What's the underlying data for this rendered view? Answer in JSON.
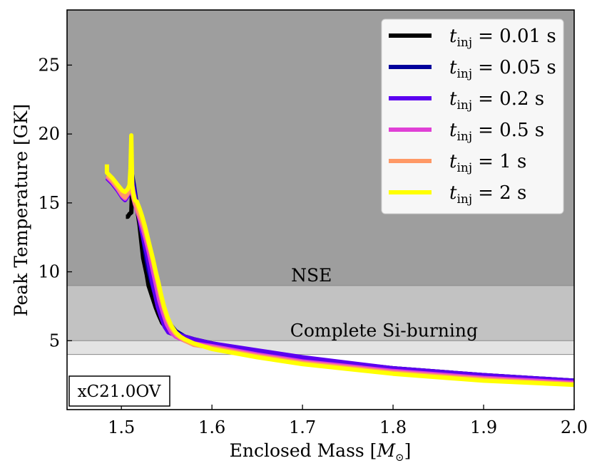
{
  "chart_data": {
    "type": "line",
    "xlabel": "Enclosed Mass [M⊙]",
    "ylabel": "Peak Temperature [GK]",
    "xlim": [
      1.44,
      2.0
    ],
    "ylim": [
      0.0,
      29.0
    ],
    "xticks": [
      1.5,
      1.6,
      1.7,
      1.8,
      1.9,
      2.0
    ],
    "xtick_labels": [
      "1.5",
      "1.6",
      "1.7",
      "1.8",
      "1.9",
      "2.0"
    ],
    "yticks": [
      5,
      10,
      15,
      20,
      25
    ],
    "ytick_labels": [
      "5",
      "10",
      "15",
      "20",
      "25"
    ],
    "bands": [
      {
        "name": "nse",
        "label": "NSE",
        "y_from": 9.0,
        "y_to": 29.0,
        "color": "#9e9e9e"
      },
      {
        "name": "complete-si",
        "label": "Complete Si-burning",
        "y_from": 5.0,
        "y_to": 9.0,
        "color": "#c2c2c2"
      },
      {
        "name": "incomplete-si",
        "label": "",
        "y_from": 4.0,
        "y_to": 5.0,
        "color": "#e3e3e3"
      }
    ],
    "band_annotations": [
      {
        "text": "NSE",
        "x": 1.71,
        "y": 9.3
      },
      {
        "text": "Complete Si-burning",
        "x": 1.79,
        "y": 5.3
      }
    ],
    "model_label": "xC21.0OV",
    "legend_position": "top-right",
    "series": [
      {
        "name": "t_inj = 0.01 s",
        "sub": "inj",
        "value_text": "= 0.01 s",
        "color": "#000000",
        "x": [
          1.505,
          1.507,
          1.509,
          1.511,
          1.512,
          1.514,
          1.516,
          1.518,
          1.52,
          1.522,
          1.524,
          1.526,
          1.528,
          1.53,
          1.532,
          1.535,
          1.538,
          1.541,
          1.545,
          1.55,
          1.555,
          1.56,
          1.57,
          1.58,
          1.6,
          1.65,
          1.7,
          1.8,
          1.9,
          2.0
        ],
        "y": [
          14.0,
          14.0,
          14.2,
          14.3,
          16.5,
          15.7,
          14.9,
          14.3,
          13.4,
          12.2,
          11.0,
          10.4,
          9.8,
          9.0,
          8.6,
          8.0,
          7.4,
          6.9,
          6.3,
          5.9,
          5.7,
          5.5,
          5.3,
          5.1,
          4.8,
          4.2,
          3.7,
          3.0,
          2.5,
          2.1
        ]
      },
      {
        "name": "t_inj = 0.05 s",
        "sub": "inj",
        "value_text": "= 0.05 s",
        "color": "#00009c",
        "x": [
          1.484,
          1.49,
          1.496,
          1.501,
          1.504,
          1.507,
          1.509,
          1.511,
          1.512,
          1.514,
          1.516,
          1.518,
          1.52,
          1.522,
          1.524,
          1.526,
          1.528,
          1.53,
          1.533,
          1.536,
          1.54,
          1.545,
          1.55,
          1.555,
          1.56,
          1.57,
          1.58,
          1.6,
          1.65,
          1.7,
          1.8,
          1.9,
          2.0
        ],
        "y": [
          17.0,
          16.6,
          16.1,
          15.6,
          15.4,
          15.7,
          16.1,
          16.3,
          17.0,
          16.2,
          15.3,
          14.6,
          13.9,
          13.2,
          12.4,
          11.6,
          10.8,
          10.1,
          9.3,
          8.6,
          7.9,
          7.2,
          6.6,
          6.1,
          5.7,
          5.3,
          5.1,
          4.8,
          4.2,
          3.7,
          3.0,
          2.5,
          2.1
        ]
      },
      {
        "name": "t_inj = 0.2 s",
        "sub": "inj",
        "value_text": "= 0.2 s",
        "color": "#5b00f0",
        "x": [
          1.484,
          1.49,
          1.496,
          1.501,
          1.504,
          1.507,
          1.509,
          1.511,
          1.512,
          1.514,
          1.516,
          1.518,
          1.52,
          1.522,
          1.525,
          1.528,
          1.531,
          1.534,
          1.537,
          1.54,
          1.544,
          1.548,
          1.552,
          1.556,
          1.56,
          1.57,
          1.58,
          1.6,
          1.65,
          1.7,
          1.8,
          1.9,
          2.0
        ],
        "y": [
          16.8,
          16.4,
          15.9,
          15.4,
          15.2,
          15.5,
          15.8,
          16.0,
          16.6,
          15.8,
          15.0,
          14.4,
          13.8,
          13.1,
          12.2,
          11.3,
          10.3,
          9.3,
          8.4,
          7.5,
          6.7,
          6.0,
          5.6,
          5.5,
          5.5,
          5.3,
          5.1,
          4.8,
          4.3,
          3.8,
          3.0,
          2.5,
          2.1
        ]
      },
      {
        "name": "t_inj = 0.5 s",
        "sub": "inj",
        "value_text": "= 0.5 s",
        "color": "#e040d6",
        "x": [
          1.484,
          1.49,
          1.496,
          1.501,
          1.504,
          1.507,
          1.509,
          1.511,
          1.513,
          1.515,
          1.517,
          1.519,
          1.521,
          1.524,
          1.527,
          1.53,
          1.533,
          1.536,
          1.539,
          1.542,
          1.546,
          1.55,
          1.555,
          1.56,
          1.57,
          1.58,
          1.6,
          1.65,
          1.7,
          1.8,
          1.9,
          2.0
        ],
        "y": [
          16.9,
          16.5,
          16.0,
          15.5,
          15.3,
          15.6,
          15.9,
          16.1,
          15.4,
          14.9,
          14.5,
          14.1,
          13.7,
          13.0,
          12.3,
          11.5,
          10.6,
          9.7,
          8.8,
          7.9,
          7.0,
          6.2,
          5.6,
          5.3,
          5.0,
          4.8,
          4.6,
          4.0,
          3.5,
          2.8,
          2.3,
          1.95
        ]
      },
      {
        "name": "t_inj = 1 s",
        "sub": "inj",
        "value_text": "= 1 s",
        "color": "#ff9966",
        "x": [
          1.484,
          1.49,
          1.496,
          1.501,
          1.504,
          1.507,
          1.509,
          1.511,
          1.513,
          1.515,
          1.517,
          1.519,
          1.522,
          1.525,
          1.528,
          1.531,
          1.534,
          1.537,
          1.54,
          1.543,
          1.547,
          1.551,
          1.556,
          1.561,
          1.57,
          1.58,
          1.6,
          1.65,
          1.7,
          1.8,
          1.9,
          2.0
        ],
        "y": [
          17.0,
          16.6,
          16.1,
          15.6,
          15.4,
          15.7,
          16.0,
          16.2,
          15.5,
          15.0,
          14.7,
          14.3,
          13.8,
          13.2,
          12.5,
          11.8,
          11.0,
          10.1,
          9.2,
          8.3,
          7.3,
          6.5,
          5.8,
          5.4,
          5.0,
          4.7,
          4.5,
          3.9,
          3.4,
          2.7,
          2.2,
          1.85
        ]
      },
      {
        "name": "t_inj = 2 s",
        "sub": "inj",
        "value_text": "= 2 s",
        "color": "#ffff00",
        "x": [
          1.484,
          1.484,
          1.49,
          1.496,
          1.501,
          1.504,
          1.507,
          1.509,
          1.51,
          1.511,
          1.512,
          1.513,
          1.515,
          1.517,
          1.52,
          1.523,
          1.526,
          1.529,
          1.532,
          1.535,
          1.538,
          1.541,
          1.544,
          1.547,
          1.551,
          1.555,
          1.56,
          1.565,
          1.57,
          1.58,
          1.6,
          1.65,
          1.7,
          1.8,
          1.9,
          2.0
        ],
        "y": [
          17.8,
          17.2,
          16.8,
          16.3,
          15.9,
          15.8,
          16.0,
          16.3,
          17.5,
          19.9,
          16.3,
          15.8,
          15.2,
          15.1,
          14.6,
          14.0,
          13.3,
          12.5,
          11.7,
          10.9,
          10.0,
          9.2,
          8.3,
          7.5,
          6.7,
          6.1,
          5.6,
          5.3,
          5.1,
          4.8,
          4.4,
          3.8,
          3.3,
          2.6,
          2.1,
          1.8
        ]
      }
    ]
  }
}
